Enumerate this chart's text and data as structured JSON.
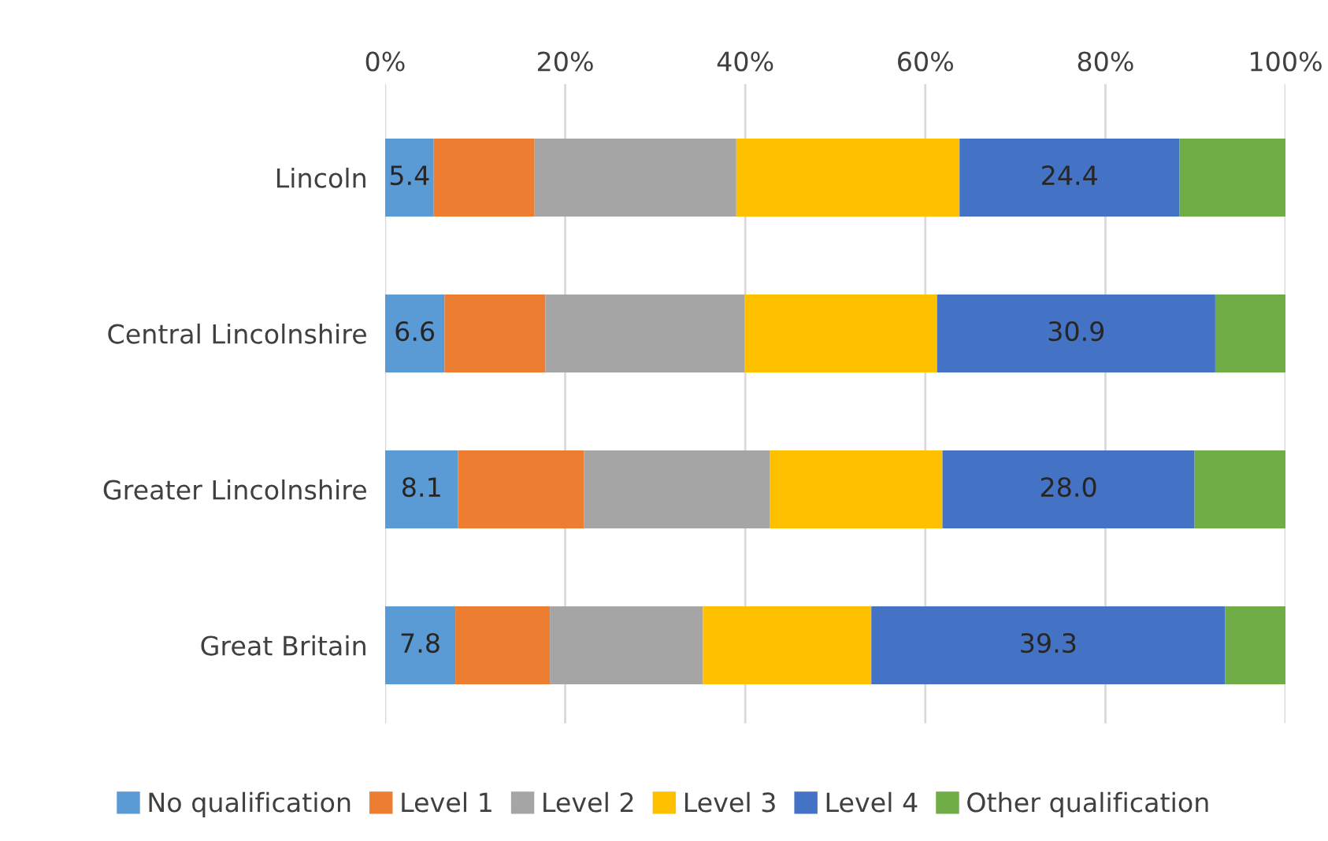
{
  "chart_data": {
    "type": "bar",
    "orientation": "horizontal",
    "stacked": true,
    "categories": [
      "Lincoln",
      "Central Lincolnshire",
      "Greater Lincolnshire",
      "Great Britain"
    ],
    "series": [
      {
        "name": "No qualification",
        "color": "#5b9bd5",
        "values": [
          5.4,
          6.6,
          8.1,
          7.8
        ],
        "value_labels": [
          "5.4",
          "6.6",
          "8.1",
          "7.8"
        ]
      },
      {
        "name": "Level 1",
        "color": "#ed7d31",
        "values": [
          11.2,
          11.2,
          14.0,
          10.5
        ]
      },
      {
        "name": "Level 2",
        "color": "#a5a5a5",
        "values": [
          22.4,
          22.1,
          20.6,
          17.0
        ]
      },
      {
        "name": "Level 3",
        "color": "#ffc000",
        "values": [
          24.8,
          21.4,
          19.2,
          18.7
        ]
      },
      {
        "name": "Level 4",
        "color": "#4472c4",
        "values": [
          24.4,
          30.9,
          28.0,
          39.3
        ],
        "value_labels": [
          "24.4",
          "30.9",
          "28.0",
          "39.3"
        ]
      },
      {
        "name": "Other qualification",
        "color": "#70ad47",
        "values": [
          11.8,
          7.8,
          10.1,
          6.7
        ]
      }
    ],
    "xlim": [
      0,
      100
    ],
    "xticks": [
      {
        "value": 0,
        "label": "0%"
      },
      {
        "value": 20,
        "label": "20%"
      },
      {
        "value": 40,
        "label": "40%"
      },
      {
        "value": 60,
        "label": "60%"
      },
      {
        "value": 80,
        "label": "80%"
      },
      {
        "value": 100,
        "label": "100%"
      }
    ],
    "grid": "x",
    "legend": "bottom"
  }
}
